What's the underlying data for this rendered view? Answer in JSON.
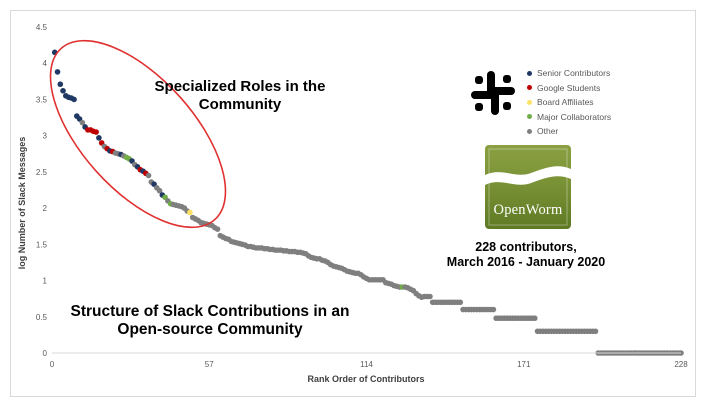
{
  "chart_data": {
    "type": "scatter",
    "xlabel": "Rank Order of Contributors",
    "ylabel": "log Number of Slack Messages",
    "xlim": [
      0,
      228
    ],
    "ylim": [
      0,
      4.5
    ],
    "x_ticks": [
      0,
      57,
      114,
      171,
      228
    ],
    "y_ticks": [
      0,
      0.5,
      1,
      1.5,
      2,
      2.5,
      3,
      3.5,
      4,
      4.5
    ],
    "y_tick_labels": [
      "0",
      "0.5",
      "1",
      "1.5",
      "2",
      "2.5",
      "3",
      "3.5",
      "4",
      "4.5"
    ],
    "grid": false,
    "legend_position": "right",
    "series": [
      {
        "name": "Senior Contributors",
        "color": "#1f3864"
      },
      {
        "name": "Google Students",
        "color": "#c00000"
      },
      {
        "name": "Board Affiliates",
        "color": "#ffe066"
      },
      {
        "name": "Major Collaborators",
        "color": "#70ad47"
      },
      {
        "name": "Other",
        "color": "#7f7f7f"
      }
    ],
    "points": [
      [
        1,
        4.15,
        0
      ],
      [
        2,
        3.88,
        0
      ],
      [
        3,
        3.71,
        0
      ],
      [
        4,
        3.62,
        0
      ],
      [
        5,
        3.55,
        0
      ],
      [
        6,
        3.53,
        0
      ],
      [
        7,
        3.52,
        0
      ],
      [
        8,
        3.5,
        0
      ],
      [
        9,
        3.27,
        0
      ],
      [
        10,
        3.23,
        0
      ],
      [
        11,
        3.18,
        4
      ],
      [
        12,
        3.12,
        0
      ],
      [
        13,
        3.08,
        1
      ],
      [
        14,
        3.08,
        1
      ],
      [
        15,
        3.06,
        1
      ],
      [
        16,
        3.05,
        1
      ],
      [
        17,
        2.97,
        0
      ],
      [
        18,
        2.9,
        1
      ],
      [
        19,
        2.85,
        4
      ],
      [
        20,
        2.82,
        1
      ],
      [
        21,
        2.79,
        0
      ],
      [
        22,
        2.78,
        1
      ],
      [
        23,
        2.76,
        4
      ],
      [
        24,
        2.75,
        4
      ],
      [
        25,
        2.74,
        0
      ],
      [
        26,
        2.72,
        4
      ],
      [
        27,
        2.7,
        3
      ],
      [
        28,
        2.68,
        3
      ],
      [
        29,
        2.65,
        0
      ],
      [
        30,
        2.6,
        4
      ],
      [
        31,
        2.57,
        0
      ],
      [
        32,
        2.53,
        1
      ],
      [
        33,
        2.51,
        0
      ],
      [
        34,
        2.48,
        1
      ],
      [
        35,
        2.45,
        4
      ],
      [
        36,
        2.36,
        4
      ],
      [
        37,
        2.33,
        0
      ],
      [
        38,
        2.28,
        4
      ],
      [
        39,
        2.24,
        4
      ],
      [
        40,
        2.18,
        0
      ],
      [
        41,
        2.15,
        3
      ],
      [
        42,
        2.1,
        4
      ],
      [
        43,
        2.06,
        3
      ],
      [
        44,
        2.05,
        4
      ],
      [
        45,
        2.04,
        4
      ],
      [
        46,
        2.03,
        4
      ],
      [
        47,
        2.02,
        4
      ],
      [
        48,
        2.0,
        4
      ],
      [
        49,
        1.96,
        4
      ],
      [
        50,
        1.94,
        2
      ],
      [
        51,
        1.87,
        4
      ],
      [
        52,
        1.85,
        4
      ],
      [
        53,
        1.83,
        4
      ],
      [
        54,
        1.8,
        4
      ],
      [
        55,
        1.79,
        4
      ],
      [
        56,
        1.78,
        4
      ],
      [
        57,
        1.77,
        4
      ],
      [
        58,
        1.76,
        4
      ],
      [
        59,
        1.73,
        4
      ],
      [
        60,
        1.71,
        4
      ],
      [
        61,
        1.62,
        4
      ],
      [
        62,
        1.6,
        4
      ],
      [
        63,
        1.58,
        4
      ],
      [
        64,
        1.57,
        4
      ],
      [
        65,
        1.54,
        4
      ],
      [
        66,
        1.53,
        4
      ],
      [
        67,
        1.52,
        4
      ],
      [
        68,
        1.51,
        4
      ],
      [
        69,
        1.5,
        4
      ],
      [
        70,
        1.49,
        4
      ],
      [
        71,
        1.47,
        4
      ],
      [
        72,
        1.47,
        4
      ],
      [
        73,
        1.46,
        4
      ],
      [
        74,
        1.45,
        4
      ],
      [
        75,
        1.45,
        4
      ],
      [
        76,
        1.45,
        4
      ],
      [
        77,
        1.44,
        4
      ],
      [
        78,
        1.44,
        4
      ],
      [
        79,
        1.43,
        4
      ],
      [
        80,
        1.43,
        4
      ],
      [
        81,
        1.42,
        4
      ],
      [
        82,
        1.42,
        4
      ],
      [
        83,
        1.42,
        4
      ],
      [
        84,
        1.41,
        4
      ],
      [
        85,
        1.41,
        4
      ],
      [
        86,
        1.4,
        4
      ],
      [
        87,
        1.4,
        4
      ],
      [
        88,
        1.4,
        4
      ],
      [
        89,
        1.39,
        4
      ],
      [
        90,
        1.39,
        4
      ],
      [
        91,
        1.38,
        4
      ],
      [
        92,
        1.37,
        4
      ],
      [
        93,
        1.34,
        4
      ],
      [
        94,
        1.32,
        4
      ],
      [
        95,
        1.31,
        4
      ],
      [
        96,
        1.3,
        4
      ],
      [
        97,
        1.3,
        4
      ],
      [
        98,
        1.28,
        4
      ],
      [
        99,
        1.27,
        4
      ],
      [
        100,
        1.25,
        4
      ],
      [
        101,
        1.22,
        4
      ],
      [
        102,
        1.2,
        4
      ],
      [
        103,
        1.19,
        4
      ],
      [
        104,
        1.18,
        4
      ],
      [
        105,
        1.17,
        4
      ],
      [
        106,
        1.15,
        4
      ],
      [
        107,
        1.13,
        4
      ],
      [
        108,
        1.12,
        4
      ],
      [
        109,
        1.11,
        4
      ],
      [
        110,
        1.1,
        4
      ],
      [
        111,
        1.1,
        4
      ],
      [
        112,
        1.08,
        4
      ],
      [
        113,
        1.05,
        4
      ],
      [
        114,
        1.03,
        4
      ],
      [
        115,
        1.01,
        4
      ],
      [
        116,
        1.01,
        4
      ],
      [
        117,
        1.01,
        4
      ],
      [
        118,
        1.01,
        4
      ],
      [
        119,
        1.01,
        4
      ],
      [
        120,
        1.01,
        4
      ],
      [
        121,
        0.97,
        4
      ],
      [
        122,
        0.96,
        4
      ],
      [
        123,
        0.95,
        4
      ],
      [
        124,
        0.93,
        4
      ],
      [
        125,
        0.92,
        4
      ],
      [
        126,
        0.91,
        4
      ],
      [
        127,
        0.91,
        3
      ],
      [
        128,
        0.91,
        4
      ],
      [
        129,
        0.9,
        4
      ],
      [
        130,
        0.88,
        4
      ],
      [
        131,
        0.86,
        4
      ],
      [
        132,
        0.82,
        4
      ],
      [
        133,
        0.79,
        4
      ],
      [
        134,
        0.77,
        4
      ],
      [
        135,
        0.78,
        4
      ],
      [
        136,
        0.78,
        4
      ],
      [
        137,
        0.78,
        4
      ],
      [
        138,
        0.7,
        4
      ],
      [
        139,
        0.7,
        4
      ],
      [
        140,
        0.7,
        4
      ],
      [
        141,
        0.7,
        4
      ],
      [
        142,
        0.7,
        4
      ],
      [
        143,
        0.7,
        4
      ],
      [
        144,
        0.7,
        4
      ],
      [
        145,
        0.7,
        4
      ],
      [
        146,
        0.7,
        4
      ],
      [
        147,
        0.7,
        4
      ],
      [
        148,
        0.7,
        4
      ],
      [
        149,
        0.6,
        4
      ],
      [
        150,
        0.6,
        4
      ],
      [
        151,
        0.6,
        4
      ],
      [
        152,
        0.6,
        4
      ],
      [
        153,
        0.6,
        4
      ],
      [
        154,
        0.6,
        4
      ],
      [
        155,
        0.6,
        4
      ],
      [
        156,
        0.6,
        4
      ],
      [
        157,
        0.6,
        4
      ],
      [
        158,
        0.6,
        4
      ],
      [
        159,
        0.6,
        4
      ],
      [
        160,
        0.6,
        4
      ],
      [
        161,
        0.48,
        4
      ],
      [
        162,
        0.48,
        4
      ],
      [
        163,
        0.48,
        4
      ],
      [
        164,
        0.48,
        4
      ],
      [
        165,
        0.48,
        4
      ],
      [
        166,
        0.48,
        4
      ],
      [
        167,
        0.48,
        4
      ],
      [
        168,
        0.48,
        4
      ],
      [
        169,
        0.48,
        4
      ],
      [
        170,
        0.48,
        4
      ],
      [
        171,
        0.48,
        4
      ],
      [
        172,
        0.48,
        4
      ],
      [
        173,
        0.48,
        4
      ],
      [
        174,
        0.48,
        4
      ],
      [
        175,
        0.48,
        4
      ],
      [
        176,
        0.3,
        4
      ],
      [
        177,
        0.3,
        4
      ],
      [
        178,
        0.3,
        4
      ],
      [
        179,
        0.3,
        4
      ],
      [
        180,
        0.3,
        4
      ],
      [
        181,
        0.3,
        4
      ],
      [
        182,
        0.3,
        4
      ],
      [
        183,
        0.3,
        4
      ],
      [
        184,
        0.3,
        4
      ],
      [
        185,
        0.3,
        4
      ],
      [
        186,
        0.3,
        4
      ],
      [
        187,
        0.3,
        4
      ],
      [
        188,
        0.3,
        4
      ],
      [
        189,
        0.3,
        4
      ],
      [
        190,
        0.3,
        4
      ],
      [
        191,
        0.3,
        4
      ],
      [
        192,
        0.3,
        4
      ],
      [
        193,
        0.3,
        4
      ],
      [
        194,
        0.3,
        4
      ],
      [
        195,
        0.3,
        4
      ],
      [
        196,
        0.3,
        4
      ],
      [
        197,
        0.3,
        4
      ],
      [
        198,
        0,
        4
      ],
      [
        199,
        0,
        4
      ],
      [
        200,
        0,
        4
      ],
      [
        201,
        0,
        4
      ],
      [
        202,
        0,
        4
      ],
      [
        203,
        0,
        4
      ],
      [
        204,
        0,
        4
      ],
      [
        205,
        0,
        4
      ],
      [
        206,
        0,
        4
      ],
      [
        207,
        0,
        4
      ],
      [
        208,
        0,
        4
      ],
      [
        209,
        0,
        4
      ],
      [
        210,
        0,
        4
      ],
      [
        211,
        0,
        4
      ],
      [
        212,
        0,
        4
      ],
      [
        213,
        0,
        4
      ],
      [
        214,
        0,
        4
      ],
      [
        215,
        0,
        4
      ],
      [
        216,
        0,
        4
      ],
      [
        217,
        0,
        4
      ],
      [
        218,
        0,
        4
      ],
      [
        219,
        0,
        4
      ],
      [
        220,
        0,
        4
      ],
      [
        221,
        0,
        4
      ],
      [
        222,
        0,
        4
      ],
      [
        223,
        0,
        4
      ],
      [
        224,
        0,
        4
      ],
      [
        225,
        0,
        4
      ],
      [
        226,
        0,
        4
      ],
      [
        227,
        0,
        4
      ],
      [
        228,
        0,
        4
      ]
    ]
  },
  "annotations": {
    "roles_text": "Specialized Roles in the Community",
    "structure_text": "Structure of Slack Contributions in an Open-source Community",
    "contributors_line1": "228 contributors,",
    "contributors_line2": "March 2016 - January 2020",
    "ellipse_color": "#e03030"
  },
  "logos": {
    "slack_icon": "slack-logo-icon",
    "openworm_label": "OpenWorm",
    "openworm_color": "#7a9236"
  }
}
